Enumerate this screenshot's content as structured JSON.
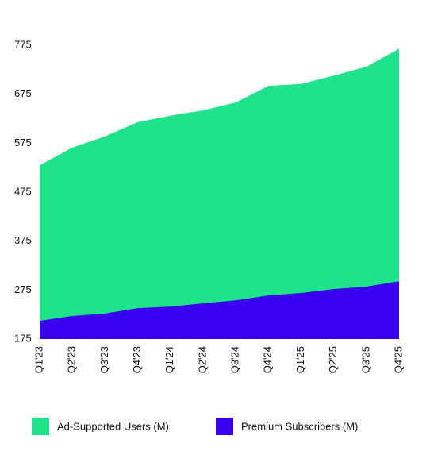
{
  "chart_data": {
    "type": "area",
    "categories": [
      "Q1'23",
      "Q2'23",
      "Q3'23",
      "Q4'23",
      "Q1'24",
      "Q2'24",
      "Q3'24",
      "Q4'24",
      "Q1'25",
      "Q2'25",
      "Q3'25",
      "Q4'25"
    ],
    "series": [
      {
        "name": "Ad-Supported Users (M)",
        "color": "#1ee38a",
        "values": [
          530,
          566,
          589,
          618,
          631,
          642,
          658,
          692,
          696,
          713,
          731,
          768
        ]
      },
      {
        "name": "Premium Subscribers (M)",
        "color": "#3a00f0",
        "values": [
          212,
          222,
          227,
          238,
          241,
          248,
          254,
          264,
          269,
          277,
          282,
          293
        ]
      }
    ],
    "ylim": [
      175,
      775
    ],
    "yticks": [
      175,
      275,
      375,
      475,
      575,
      675,
      775
    ],
    "grid": false,
    "legend": "bottom"
  }
}
